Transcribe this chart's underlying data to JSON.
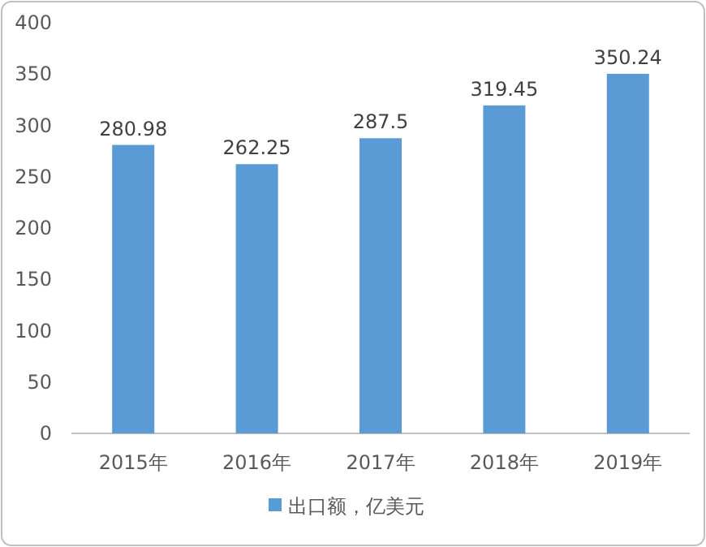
{
  "chart_data": {
    "type": "bar",
    "categories": [
      "2015年",
      "2016年",
      "2017年",
      "2018年",
      "2019年"
    ],
    "series": [
      {
        "name": "出口额，亿美元",
        "color": "#5b9bd5",
        "values": [
          280.98,
          262.25,
          287.5,
          319.45,
          350.24
        ]
      }
    ],
    "ylim": [
      0,
      400
    ],
    "yticks": [
      0,
      50,
      100,
      150,
      200,
      250,
      300,
      350,
      400
    ],
    "data_labels": true,
    "legend": "bottom",
    "grid": false
  }
}
